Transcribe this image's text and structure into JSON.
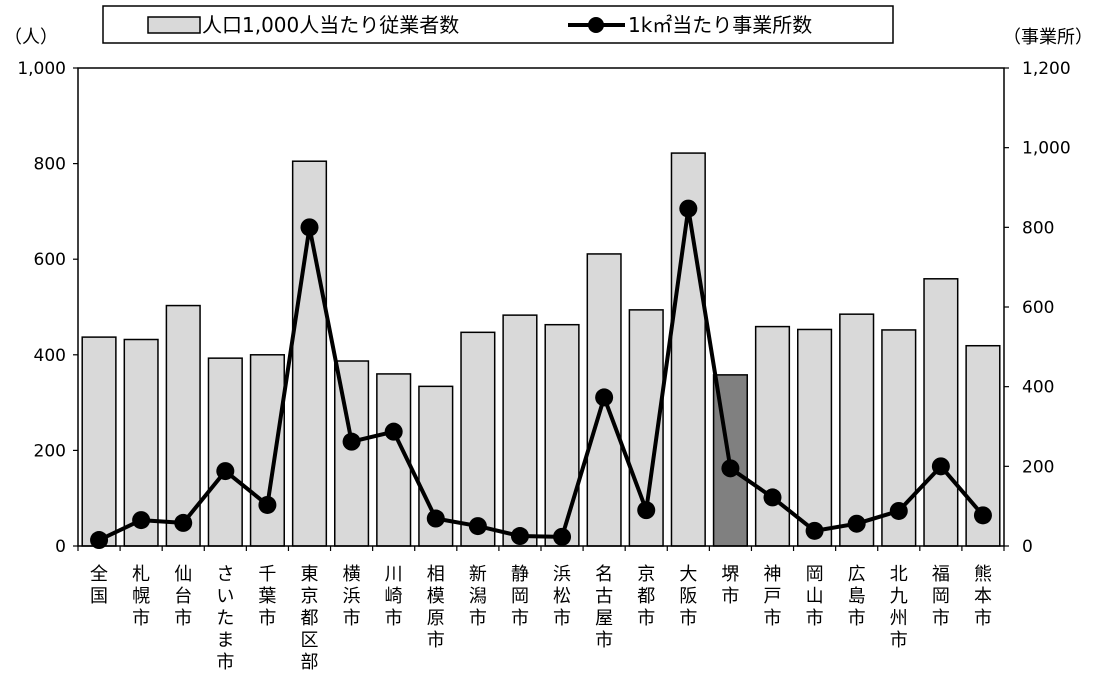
{
  "chart_data": {
    "type": "bar+line",
    "categories": [
      "全国",
      "札幌市",
      "仙台市",
      "さいたま市",
      "千葉市",
      "東京都区部",
      "横浜市",
      "川崎市",
      "相模原市",
      "新潟市",
      "静岡市",
      "浜松市",
      "名古屋市",
      "京都市",
      "大阪市",
      "堺市",
      "神戸市",
      "岡山市",
      "広島市",
      "北九州市",
      "福岡市",
      "熊本市"
    ],
    "series": [
      {
        "name": "人口1,000人当たり従業者数",
        "type": "bar",
        "axis": "left",
        "values": [
          437,
          432,
          503,
          393,
          400,
          805,
          387,
          360,
          334,
          447,
          483,
          463,
          611,
          494,
          822,
          358,
          459,
          453,
          485,
          452,
          559,
          419
        ]
      },
      {
        "name": "1k㎡当たり事業所数",
        "type": "line",
        "axis": "right",
        "values": [
          15,
          65,
          58,
          188,
          103,
          800,
          262,
          287,
          69,
          50,
          25,
          23,
          373,
          90,
          847,
          195,
          122,
          38,
          56,
          88,
          200,
          77
        ]
      }
    ],
    "highlight": {
      "category": "堺市",
      "color": "#808080"
    },
    "left_axis": {
      "unit": "（人）",
      "ylim": [
        0,
        1000
      ],
      "ticks": [
        0,
        200,
        400,
        600,
        800,
        1000
      ]
    },
    "right_axis": {
      "unit": "（事業所）",
      "ylim": [
        0,
        1200
      ],
      "ticks": [
        0,
        200,
        400,
        600,
        800,
        1000,
        1200
      ]
    },
    "legend": {
      "position": "top"
    },
    "grid": false,
    "colors": {
      "bar": "#d9d9d9",
      "bar_highlight": "#808080",
      "line": "#000000"
    }
  }
}
